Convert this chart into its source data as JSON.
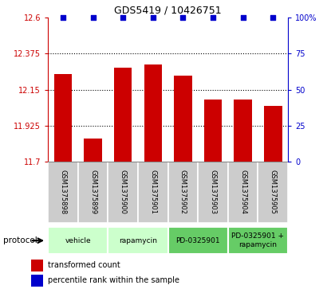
{
  "title": "GDS5419 / 10426751",
  "samples": [
    "GSM1375898",
    "GSM1375899",
    "GSM1375900",
    "GSM1375901",
    "GSM1375902",
    "GSM1375903",
    "GSM1375904",
    "GSM1375905"
  ],
  "bar_values": [
    12.245,
    11.845,
    12.285,
    12.305,
    12.235,
    12.09,
    12.09,
    12.05
  ],
  "percentile_values": [
    100,
    100,
    100,
    100,
    100,
    100,
    100,
    100
  ],
  "ylim_left": [
    11.7,
    12.6
  ],
  "ylim_right": [
    0,
    100
  ],
  "yticks_left": [
    11.7,
    11.925,
    12.15,
    12.375,
    12.6
  ],
  "ytick_labels_left": [
    "11.7",
    "11.925",
    "12.15",
    "12.375",
    "12.6"
  ],
  "yticks_right": [
    0,
    25,
    50,
    75,
    100
  ],
  "ytick_labels_right": [
    "0",
    "25",
    "50",
    "75",
    "100%"
  ],
  "bar_color": "#cc0000",
  "percentile_color": "#0000cc",
  "protocols": [
    {
      "label": "vehicle",
      "start": 0,
      "end": 1,
      "color": "#ccffcc"
    },
    {
      "label": "rapamycin",
      "start": 2,
      "end": 3,
      "color": "#ccffcc"
    },
    {
      "label": "PD-0325901",
      "start": 4,
      "end": 5,
      "color": "#66cc66"
    },
    {
      "label": "PD-0325901 +\nrapamycin",
      "start": 6,
      "end": 7,
      "color": "#66cc66"
    }
  ],
  "legend_bar_label": "transformed count",
  "legend_pct_label": "percentile rank within the sample",
  "protocol_label": "protocol",
  "sample_bg": "#cccccc",
  "sample_border": "#aaaaaa"
}
